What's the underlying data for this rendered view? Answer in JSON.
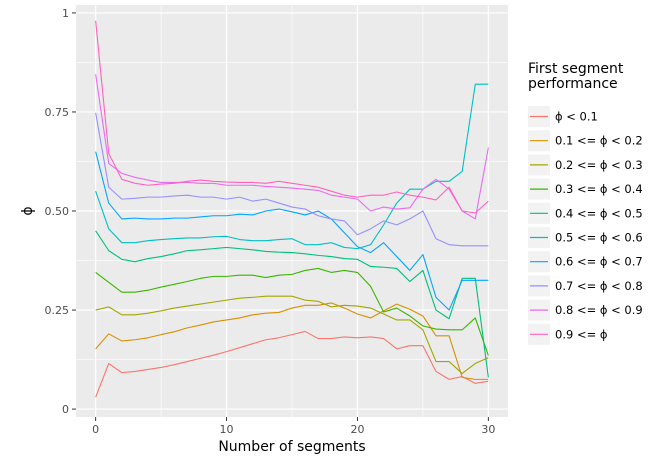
{
  "chart_data": {
    "type": "line",
    "title": "",
    "xlabel": "Number of segments",
    "ylabel": "ϕ",
    "xlim": [
      -1.5,
      31.5
    ],
    "ylim": [
      -0.02,
      1.02
    ],
    "x_ticks": [
      0,
      10,
      20,
      30
    ],
    "y_ticks": [
      0,
      0.25,
      0.5,
      0.75,
      1
    ],
    "y_tick_labels": [
      "0",
      "0.25",
      "0.50",
      "0.75",
      "1"
    ],
    "grid": true,
    "legend": {
      "title": "First segment performance",
      "title_lines": [
        "First segment",
        "performance"
      ],
      "position": "right"
    },
    "x": [
      0,
      1,
      2,
      3,
      4,
      5,
      6,
      7,
      8,
      9,
      10,
      11,
      12,
      13,
      14,
      15,
      16,
      17,
      18,
      19,
      20,
      21,
      22,
      23,
      24,
      25,
      26,
      27,
      28,
      29,
      30
    ],
    "series": [
      {
        "name": "ϕ < 0.1",
        "color": "#F8766D",
        "values": [
          0.03,
          0.115,
          0.092,
          0.095,
          0.1,
          0.105,
          0.112,
          0.12,
          0.128,
          0.136,
          0.145,
          0.155,
          0.165,
          0.175,
          0.18,
          0.188,
          0.196,
          0.178,
          0.178,
          0.182,
          0.18,
          0.182,
          0.178,
          0.152,
          0.16,
          0.16,
          0.095,
          0.075,
          0.082,
          0.065,
          0.07
        ]
      },
      {
        "name": "0.1 <= ϕ < 0.2",
        "color": "#D89000",
        "values": [
          0.152,
          0.19,
          0.172,
          0.175,
          0.18,
          0.188,
          0.195,
          0.205,
          0.212,
          0.22,
          0.225,
          0.23,
          0.238,
          0.242,
          0.244,
          0.255,
          0.262,
          0.262,
          0.268,
          0.255,
          0.24,
          0.23,
          0.248,
          0.265,
          0.252,
          0.235,
          0.185,
          0.185,
          0.08,
          0.075,
          0.075
        ]
      },
      {
        "name": "0.2 <= ϕ < 0.3",
        "color": "#A3A500",
        "values": [
          0.25,
          0.258,
          0.238,
          0.238,
          0.242,
          0.248,
          0.255,
          0.26,
          0.265,
          0.27,
          0.275,
          0.28,
          0.282,
          0.285,
          0.285,
          0.285,
          0.275,
          0.272,
          0.258,
          0.262,
          0.26,
          0.255,
          0.24,
          0.225,
          0.225,
          0.2,
          0.12,
          0.12,
          0.09,
          0.115,
          0.13
        ]
      },
      {
        "name": "0.3 <= ϕ < 0.4",
        "color": "#39B600",
        "values": [
          0.345,
          0.32,
          0.295,
          0.295,
          0.3,
          0.308,
          0.315,
          0.322,
          0.33,
          0.335,
          0.335,
          0.338,
          0.338,
          0.332,
          0.338,
          0.34,
          0.35,
          0.355,
          0.345,
          0.35,
          0.345,
          0.31,
          0.245,
          0.255,
          0.235,
          0.21,
          0.202,
          0.2,
          0.2,
          0.23,
          0.135
        ]
      },
      {
        "name": "0.4 <= ϕ < 0.5",
        "color": "#00BF7D",
        "values": [
          0.45,
          0.4,
          0.378,
          0.372,
          0.38,
          0.385,
          0.392,
          0.4,
          0.402,
          0.405,
          0.408,
          0.405,
          0.402,
          0.398,
          0.396,
          0.395,
          0.392,
          0.388,
          0.385,
          0.38,
          0.378,
          0.36,
          0.358,
          0.355,
          0.322,
          0.35,
          0.25,
          0.228,
          0.33,
          0.33,
          0.08
        ]
      },
      {
        "name": "0.5 <= ϕ < 0.6",
        "color": "#00BFC4",
        "values": [
          0.55,
          0.455,
          0.42,
          0.42,
          0.425,
          0.428,
          0.43,
          0.432,
          0.432,
          0.435,
          0.436,
          0.428,
          0.425,
          0.425,
          0.428,
          0.43,
          0.415,
          0.415,
          0.42,
          0.408,
          0.405,
          0.415,
          0.465,
          0.52,
          0.555,
          0.555,
          0.575,
          0.575,
          0.6,
          0.82,
          0.82
        ]
      },
      {
        "name": "0.6 <= ϕ < 0.7",
        "color": "#00A5FF",
        "values": [
          0.65,
          0.52,
          0.48,
          0.482,
          0.48,
          0.48,
          0.482,
          0.482,
          0.485,
          0.488,
          0.488,
          0.492,
          0.49,
          0.5,
          0.505,
          0.498,
          0.49,
          0.5,
          0.48,
          0.445,
          0.41,
          0.395,
          0.42,
          0.385,
          0.35,
          0.39,
          0.282,
          0.25,
          0.325,
          0.325,
          0.325
        ]
      },
      {
        "name": "0.7 <= ϕ < 0.8",
        "color": "#9590FF",
        "values": [
          0.748,
          0.56,
          0.53,
          0.532,
          0.535,
          0.535,
          0.538,
          0.54,
          0.535,
          0.535,
          0.53,
          0.535,
          0.525,
          0.53,
          0.52,
          0.51,
          0.505,
          0.488,
          0.48,
          0.475,
          0.44,
          0.455,
          0.475,
          0.465,
          0.48,
          0.5,
          0.43,
          0.415,
          0.412,
          0.412,
          0.412
        ]
      },
      {
        "name": "0.8 <= ϕ < 0.9",
        "color": "#E76BF3",
        "values": [
          0.845,
          0.62,
          0.595,
          0.585,
          0.578,
          0.572,
          0.572,
          0.572,
          0.57,
          0.57,
          0.565,
          0.565,
          0.565,
          0.562,
          0.56,
          0.558,
          0.555,
          0.552,
          0.54,
          0.535,
          0.53,
          0.5,
          0.51,
          0.505,
          0.508,
          0.555,
          0.58,
          0.555,
          0.5,
          0.48,
          0.66
        ]
      },
      {
        "name": "0.9 <= ϕ",
        "color": "#FF62BC",
        "values": [
          0.98,
          0.645,
          0.58,
          0.57,
          0.565,
          0.568,
          0.57,
          0.575,
          0.578,
          0.575,
          0.573,
          0.572,
          0.572,
          0.57,
          0.575,
          0.57,
          0.565,
          0.56,
          0.55,
          0.54,
          0.535,
          0.54,
          0.54,
          0.548,
          0.54,
          0.535,
          0.528,
          0.56,
          0.5,
          0.495,
          0.525
        ]
      }
    ]
  }
}
